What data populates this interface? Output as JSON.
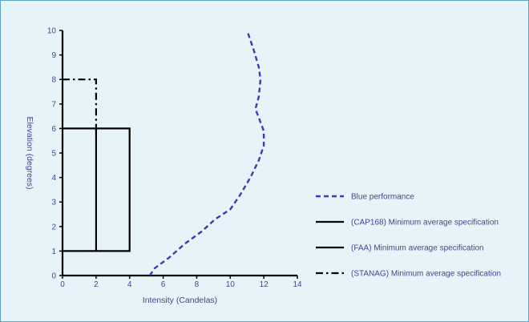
{
  "chart_data": {
    "type": "line",
    "xlabel": "Intensity  (Candelas)",
    "ylabel": "Elevation (degrees)",
    "xlim": [
      0,
      14
    ],
    "ylim": [
      0,
      10
    ],
    "x_ticks": [
      "0",
      "2",
      "4",
      "6",
      "8",
      "10",
      "12",
      "14"
    ],
    "y_ticks": [
      "0",
      "1",
      "2",
      "3",
      "4",
      "5",
      "6",
      "7",
      "8",
      "9",
      "10"
    ],
    "grid": false,
    "legend_position": "right",
    "series": [
      {
        "name": "Blue performance",
        "style": "dashed",
        "color": "#3b3bb0",
        "points": [
          [
            5.2,
            0
          ],
          [
            5.5,
            0.3
          ],
          [
            6.3,
            0.7
          ],
          [
            7.3,
            1.3
          ],
          [
            8.3,
            1.8
          ],
          [
            9.1,
            2.3
          ],
          [
            10.0,
            2.7
          ],
          [
            10.6,
            3.3
          ],
          [
            11.2,
            4.0
          ],
          [
            11.7,
            4.7
          ],
          [
            12.0,
            5.3
          ],
          [
            12.0,
            5.9
          ],
          [
            11.5,
            6.8
          ],
          [
            11.7,
            7.3
          ],
          [
            11.8,
            8.0
          ],
          [
            11.7,
            8.5
          ],
          [
            11.4,
            9.2
          ],
          [
            11.0,
            10.0
          ]
        ]
      },
      {
        "name": "(CAP168) Minimum average specification",
        "style": "solid",
        "color": "#000000",
        "points": [
          [
            0,
            6.0
          ],
          [
            4,
            6.0
          ],
          [
            4,
            1.0
          ],
          [
            0,
            1.0
          ]
        ]
      },
      {
        "name": "(FAA) Minimum average specification",
        "style": "solid",
        "color": "#000000",
        "points": [
          [
            2,
            1.0
          ],
          [
            2,
            6.0
          ]
        ]
      },
      {
        "name": "(STANAG) Minimum average specification",
        "style": "dashdot",
        "color": "#000000",
        "points": [
          [
            0,
            8.0
          ],
          [
            2,
            8.0
          ],
          [
            2,
            6.0
          ]
        ]
      }
    ]
  }
}
